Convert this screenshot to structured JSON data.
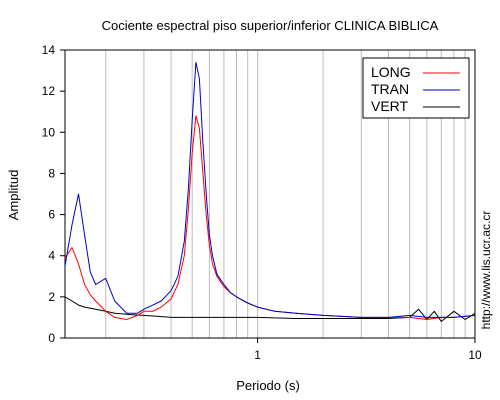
{
  "chart_data": {
    "type": "line",
    "title": "Cociente espectral piso superior/inferior  CLINICA BIBLICA",
    "xlabel": "Periodo (s)",
    "ylabel": "Amplitud",
    "x_scale": "log",
    "xlim": [
      0.13,
      10
    ],
    "ylim": [
      0,
      14
    ],
    "x_ticks": [
      1,
      10
    ],
    "x_tick_labels": [
      "1",
      "10"
    ],
    "y_ticks": [
      0,
      2,
      4,
      6,
      8,
      10,
      12,
      14
    ],
    "y_tick_labels": [
      "0",
      "2",
      "4",
      "6",
      "8",
      "10",
      "12",
      "14"
    ],
    "grid": "vertical log grid",
    "legend_position": "top-right",
    "side_text": "http://www.lis.ucr.ac.cr",
    "series": [
      {
        "name": "LONG",
        "color": "#ff0000",
        "x": [
          0.13,
          0.14,
          0.15,
          0.16,
          0.17,
          0.18,
          0.2,
          0.22,
          0.25,
          0.28,
          0.3,
          0.33,
          0.36,
          0.4,
          0.43,
          0.46,
          0.48,
          0.5,
          0.52,
          0.54,
          0.56,
          0.58,
          0.6,
          0.62,
          0.65,
          0.7,
          0.75,
          0.8,
          0.9,
          1.0,
          1.2,
          1.5,
          2.0,
          3.0,
          4.0,
          5.0,
          6.0,
          7.0,
          8.0,
          10.0
        ],
        "values": [
          3.9,
          4.4,
          3.6,
          2.6,
          2.1,
          1.8,
          1.3,
          1.0,
          0.9,
          1.1,
          1.3,
          1.3,
          1.5,
          1.9,
          2.6,
          4.0,
          6.2,
          9.0,
          10.8,
          10.2,
          8.0,
          6.0,
          4.5,
          3.6,
          3.0,
          2.5,
          2.2,
          2.0,
          1.7,
          1.5,
          1.3,
          1.2,
          1.1,
          1.0,
          1.0,
          1.0,
          0.9,
          1.0,
          1.0,
          1.1
        ]
      },
      {
        "name": "TRAN",
        "color": "#0000cc",
        "x": [
          0.13,
          0.14,
          0.15,
          0.16,
          0.17,
          0.18,
          0.2,
          0.22,
          0.25,
          0.28,
          0.3,
          0.33,
          0.36,
          0.4,
          0.43,
          0.46,
          0.48,
          0.5,
          0.52,
          0.54,
          0.56,
          0.58,
          0.6,
          0.62,
          0.65,
          0.7,
          0.75,
          0.8,
          0.9,
          1.0,
          1.2,
          1.5,
          2.0,
          3.0,
          4.0,
          5.0,
          6.0,
          7.0,
          8.0,
          10.0
        ],
        "values": [
          3.5,
          5.5,
          7.0,
          5.0,
          3.2,
          2.6,
          2.9,
          1.8,
          1.2,
          1.2,
          1.4,
          1.6,
          1.8,
          2.3,
          3.0,
          4.7,
          7.2,
          10.6,
          13.4,
          12.6,
          9.5,
          7.0,
          5.0,
          4.0,
          3.1,
          2.6,
          2.2,
          2.0,
          1.7,
          1.5,
          1.3,
          1.2,
          1.1,
          1.0,
          1.0,
          1.1,
          1.0,
          1.0,
          1.0,
          1.1
        ]
      },
      {
        "name": "VERT",
        "color": "#000000",
        "x": [
          0.13,
          0.14,
          0.15,
          0.16,
          0.18,
          0.2,
          0.22,
          0.25,
          0.3,
          0.35,
          0.4,
          0.5,
          0.6,
          0.8,
          1.0,
          1.5,
          2.0,
          3.0,
          4.0,
          5.0,
          5.5,
          6.0,
          6.5,
          7.0,
          8.0,
          9.0,
          10.0
        ],
        "values": [
          2.0,
          1.8,
          1.6,
          1.5,
          1.4,
          1.3,
          1.2,
          1.15,
          1.1,
          1.05,
          1.0,
          1.0,
          1.0,
          1.0,
          1.0,
          0.95,
          0.95,
          0.95,
          0.95,
          1.0,
          1.4,
          0.9,
          1.3,
          0.8,
          1.3,
          0.9,
          1.2
        ]
      }
    ]
  }
}
